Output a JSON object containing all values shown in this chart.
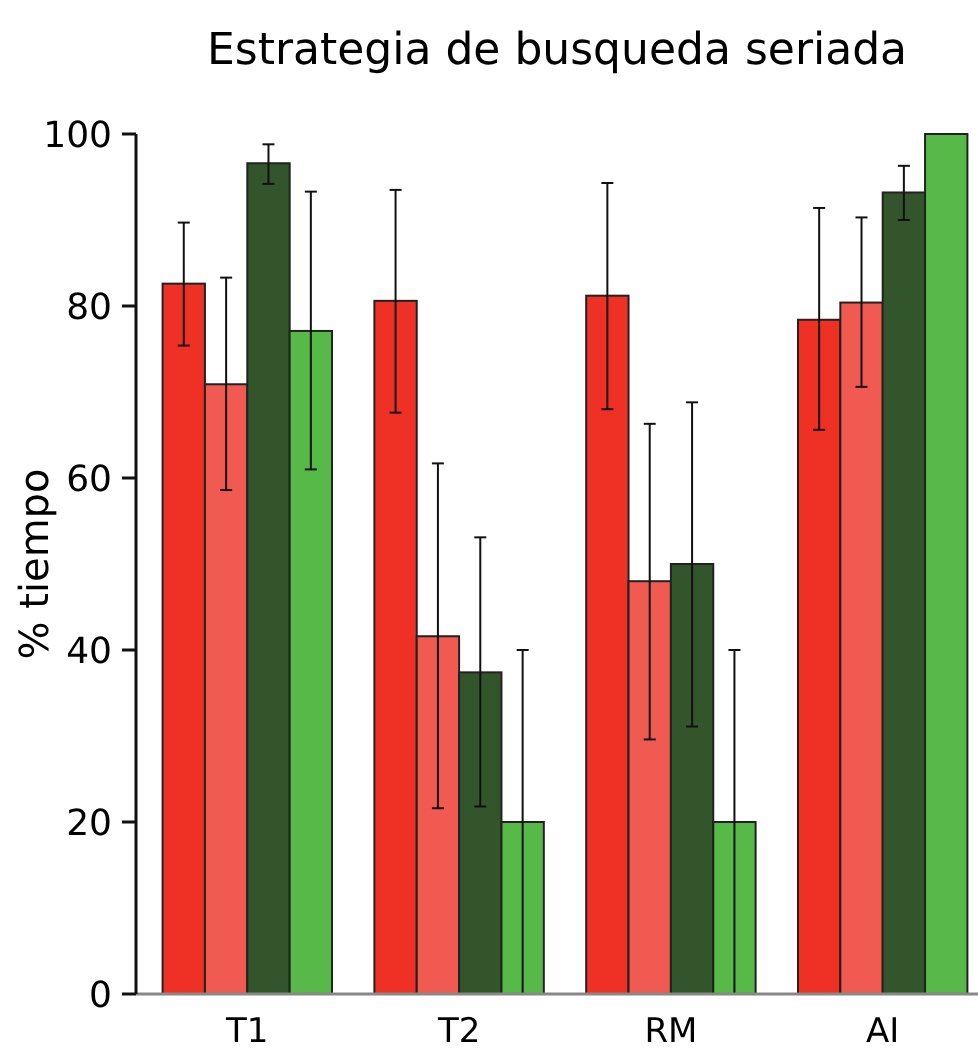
{
  "chart_data": {
    "type": "bar",
    "title": "Estrategia de busqueda seriada",
    "ylabel": "% tiempo",
    "categories": [
      "T1",
      "T2",
      "RM",
      "AI"
    ],
    "ylim": [
      0,
      100
    ],
    "yticks": [
      0,
      20,
      40,
      60,
      80,
      100
    ],
    "grid": false,
    "series": [
      {
        "color": "#ee3124",
        "values": [
          82.6,
          80.6,
          81.2,
          78.4
        ],
        "errors": [
          [
            75.4,
            89.7
          ],
          [
            67.6,
            93.5
          ],
          [
            68.0,
            94.3
          ],
          [
            65.6,
            91.4
          ]
        ]
      },
      {
        "color": "#f15a50",
        "values": [
          70.9,
          41.6,
          48.0,
          80.4
        ],
        "errors": [
          [
            58.6,
            83.3
          ],
          [
            21.6,
            61.7
          ],
          [
            29.6,
            66.3
          ],
          [
            70.6,
            90.3
          ]
        ]
      },
      {
        "color": "#33552b",
        "values": [
          96.6,
          37.4,
          50.0,
          93.2
        ],
        "errors": [
          [
            94.2,
            98.8
          ],
          [
            21.8,
            53.1
          ],
          [
            31.1,
            68.8
          ],
          [
            90.0,
            96.3
          ]
        ]
      },
      {
        "color": "#57b947",
        "values": [
          77.1,
          20.0,
          20.0,
          100
        ],
        "errors": [
          [
            61.0,
            93.3
          ],
          [
            0,
            40.0
          ],
          [
            0,
            40.0
          ],
          null
        ]
      }
    ]
  }
}
